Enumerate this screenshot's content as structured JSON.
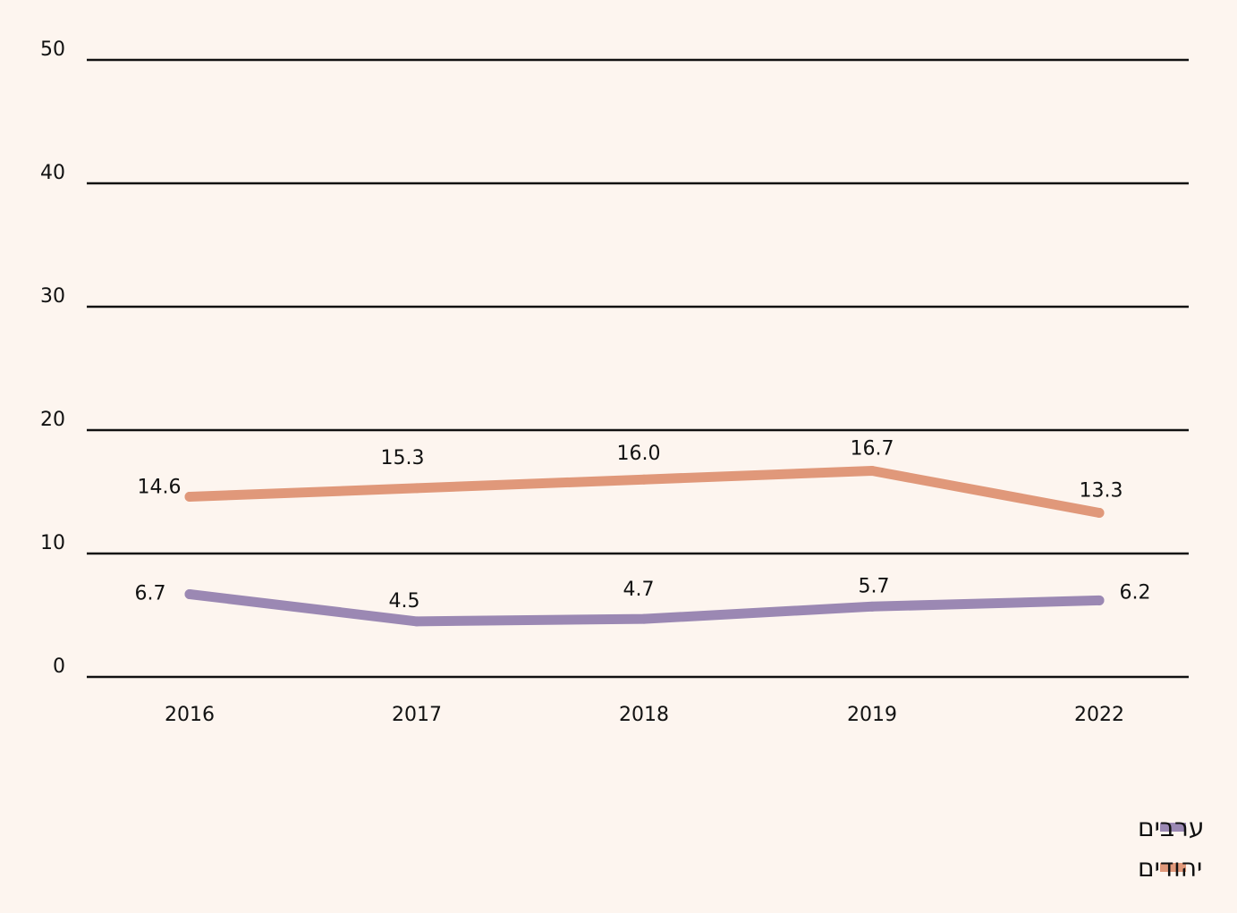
{
  "chart_data": {
    "type": "line",
    "title": "",
    "xlabel": "",
    "ylabel": "",
    "categories": [
      "2016",
      "2017",
      "2018",
      "2019",
      "2022"
    ],
    "ylim": [
      0,
      50
    ],
    "yticks": [
      0,
      10,
      20,
      30,
      40,
      50
    ],
    "grid": true,
    "legend_position": "bottom-right",
    "series": [
      {
        "name": "ערבים",
        "color": "#9b88b3",
        "values": [
          6.7,
          4.5,
          4.7,
          5.7,
          6.2
        ],
        "labels": [
          "6.7",
          "4.5",
          "4.7",
          "5.7",
          "6.2"
        ]
      },
      {
        "name": "יהודים",
        "color": "#e0987a",
        "values": [
          14.6,
          15.3,
          16.0,
          16.7,
          13.3
        ],
        "labels": [
          "14.6",
          "15.3",
          "16.0",
          "16.7",
          "13.3"
        ]
      }
    ]
  }
}
